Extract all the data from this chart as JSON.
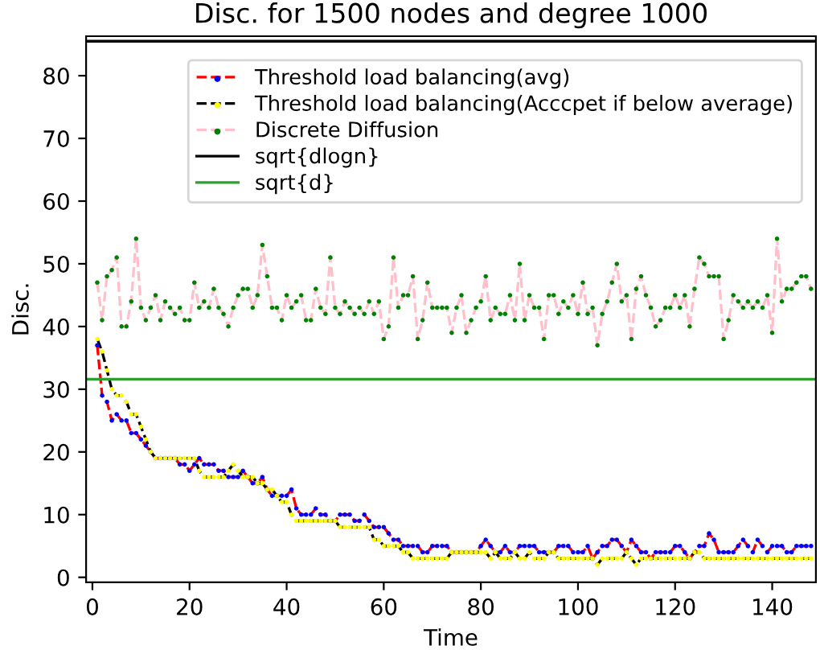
{
  "chart_data": {
    "type": "line",
    "title": "Disc. for 1500 nodes and degree 1000",
    "xlabel": "Time",
    "ylabel": "Disc.",
    "x": [
      1,
      2,
      3,
      4,
      5,
      6,
      7,
      8,
      9,
      10,
      11,
      12,
      13,
      14,
      15,
      16,
      17,
      18,
      19,
      20,
      21,
      22,
      23,
      24,
      25,
      26,
      27,
      28,
      29,
      30,
      31,
      32,
      33,
      34,
      35,
      36,
      37,
      38,
      39,
      40,
      41,
      42,
      43,
      44,
      45,
      46,
      47,
      48,
      49,
      50,
      51,
      52,
      53,
      54,
      55,
      56,
      57,
      58,
      59,
      60,
      61,
      62,
      63,
      64,
      65,
      66,
      67,
      68,
      69,
      70,
      71,
      72,
      73,
      74,
      75,
      76,
      77,
      78,
      79,
      80,
      81,
      82,
      83,
      84,
      85,
      86,
      87,
      88,
      89,
      90,
      91,
      92,
      93,
      94,
      95,
      96,
      97,
      98,
      99,
      100,
      101,
      102,
      103,
      104,
      105,
      106,
      107,
      108,
      109,
      110,
      111,
      112,
      113,
      114,
      115,
      116,
      117,
      118,
      119,
      120,
      121,
      122,
      123,
      124,
      125,
      126,
      127,
      128,
      129,
      130,
      131,
      132,
      133,
      134,
      135,
      136,
      137,
      138,
      139,
      140,
      141,
      142,
      143,
      144,
      145,
      146,
      147,
      148
    ],
    "series": [
      {
        "name": "Threshold load balancing(avg)",
        "color": "#ff0000",
        "colors": [
          "#0000ff",
          "#0000ff",
          "#0000ff",
          "#0000ff",
          "#0000ff",
          "#0000ff",
          "#0000ff",
          "#0000ff",
          "#0000ff",
          "#0000ff",
          "#0000ff",
          "#0000ff",
          "#0000ff",
          "#0000ff",
          "#0000ff",
          "#0000ff",
          "#0000ff",
          "#0000ff",
          "#0000ff",
          "#0000ff",
          "#0000ff",
          "#0000ff",
          "#0000ff",
          "#0000ff",
          "#0000ff",
          "#0000ff",
          "#0000ff",
          "#0000ff",
          "#0000ff",
          "#0000ff",
          "#0000ff",
          "#0000ff",
          "#0000ff",
          "#0000ff",
          "#0000ff",
          "#0000ff",
          "#0000ff",
          "#0000ff",
          "#0000ff",
          "#0000ff",
          "#0000ff",
          "#0000ff",
          "#0000ff",
          "#0000ff",
          "#0000ff",
          "#0000ff",
          "#0000ff",
          "#0000ff",
          "#0000ff",
          "#0000ff",
          "#0000ff",
          "#0000ff",
          "#0000ff",
          "#0000ff",
          "#0000ff",
          "#0000ff",
          "#0000ff",
          "#0000ff",
          "#0000ff",
          "#0000ff",
          "#0000ff",
          "#0000ff",
          "#0000ff",
          "#0000ff",
          "#0000ff",
          "#0000ff",
          "#0000ff",
          "#0000ff",
          "#0000ff",
          "#0000ff",
          "#0000ff",
          "#0000ff",
          "#0000ff",
          "#0000ff",
          "#0000ff",
          "#0000ff",
          "#0000ff",
          "#0000ff",
          "#0000ff",
          "#0000ff",
          "#0000ff",
          "#0000ff",
          "#0000ff",
          "#0000ff",
          "#0000ff",
          "#0000ff",
          "#0000ff",
          "#0000ff",
          "#0000ff",
          "#0000ff",
          "#0000ff",
          "#0000ff",
          "#0000ff",
          "#0000ff",
          "#0000ff",
          "#0000ff",
          "#0000ff",
          "#0000ff",
          "#0000ff",
          "#0000ff",
          "#0000ff",
          "#0000ff",
          "#0000ff",
          "#0000ff",
          "#0000ff",
          "#0000ff",
          "#0000ff",
          "#0000ff",
          "#0000ff",
          "#0000ff",
          "#0000ff",
          "#0000ff",
          "#0000ff",
          "#0000ff",
          "#0000ff",
          "#0000ff",
          "#0000ff",
          "#0000ff",
          "#0000ff",
          "#0000ff",
          "#0000ff",
          "#0000ff",
          "#0000ff",
          "#0000ff",
          "#0000ff",
          "#0000ff",
          "#0000ff",
          "#0000ff",
          "#0000ff",
          "#0000ff",
          "#0000ff",
          "#0000ff",
          "#0000ff",
          "#0000ff",
          "#0000ff",
          "#0000ff",
          "#0000ff",
          "#0000ff",
          "#0000ff",
          "#0000ff",
          "#0000ff",
          "#0000ff",
          "#0000ff",
          "#0000ff",
          "#0000ff",
          "#0000ff",
          "#0000ff",
          "#0000ff"
        ],
        "values": [
          37,
          29,
          28,
          25,
          26,
          25,
          25,
          23,
          23,
          22,
          21,
          20,
          19,
          19,
          19,
          19,
          19,
          18,
          18,
          17,
          18,
          19,
          18,
          18,
          18,
          17,
          17,
          16,
          16,
          16,
          17,
          16,
          15,
          15,
          16,
          14,
          13,
          13,
          13,
          13,
          14,
          11,
          10,
          10,
          10,
          11,
          10,
          10,
          9,
          9,
          10,
          10,
          10,
          9,
          9,
          10,
          9,
          8,
          8,
          8,
          7,
          6,
          6,
          5,
          5,
          5,
          5,
          4,
          4,
          5,
          5,
          5,
          5,
          4,
          4,
          4,
          4,
          4,
          4,
          5,
          6,
          5,
          4,
          4,
          5,
          4,
          4,
          5,
          5,
          5,
          5,
          4,
          4,
          4,
          4,
          5,
          5,
          5,
          4,
          4,
          4,
          5,
          3,
          4,
          5,
          5,
          6,
          6,
          5,
          4,
          6,
          5,
          4,
          4,
          3,
          4,
          4,
          4,
          4,
          5,
          5,
          4,
          3,
          4,
          5,
          5,
          7,
          6,
          4,
          4,
          4,
          4,
          5,
          6,
          5,
          4,
          6,
          5,
          4,
          5,
          5,
          5,
          4,
          4,
          5,
          5,
          5,
          5
        ]
      },
      {
        "name": "Threshold load balancing(Acccpet if below average)",
        "color": "#000000",
        "colors": [
          "#ffff00",
          "#ffff00",
          "#ffff00",
          "#ffff00",
          "#ffff00",
          "#ffff00",
          "#ffff00",
          "#ffff00",
          "#ffff00",
          "#ffff00",
          "#ffff00",
          "#ffff00",
          "#ffff00",
          "#ffff00",
          "#ffff00",
          "#ffff00",
          "#ffff00",
          "#ffff00",
          "#ffff00",
          "#ffff00",
          "#ffff00",
          "#ffff00",
          "#ffff00",
          "#ffff00",
          "#ffff00",
          "#ffff00",
          "#ffff00",
          "#ffff00",
          "#ffff00",
          "#ffff00",
          "#ffff00",
          "#ffff00",
          "#ffff00",
          "#ffff00",
          "#ffff00",
          "#ffff00",
          "#ffff00",
          "#ffff00",
          "#ffff00",
          "#ffff00",
          "#ffff00",
          "#ffff00",
          "#ffff00",
          "#ffff00",
          "#ffff00",
          "#ffff00",
          "#ffff00",
          "#ffff00",
          "#ffff00",
          "#ffff00",
          "#ffff00",
          "#ffff00",
          "#ffff00",
          "#ffff00",
          "#ffff00",
          "#ffff00",
          "#ffff00",
          "#ffff00",
          "#ffff00",
          "#ffff00",
          "#ffff00",
          "#ffff00",
          "#ffff00",
          "#ffff00",
          "#ffff00",
          "#ffff00",
          "#ffff00",
          "#ffff00",
          "#ffff00",
          "#ffff00",
          "#ffff00",
          "#ffff00",
          "#ffff00",
          "#ffff00",
          "#ffff00",
          "#ffff00",
          "#ffff00",
          "#ffff00",
          "#ffff00",
          "#ffff00",
          "#ffff00",
          "#ffff00",
          "#ffff00",
          "#ffff00",
          "#ffff00",
          "#ffff00",
          "#ffff00",
          "#ffff00",
          "#ffff00",
          "#ffff00",
          "#ffff00",
          "#ffff00",
          "#ffff00",
          "#ffff00",
          "#ffff00",
          "#ffff00",
          "#ffff00",
          "#ffff00",
          "#ffff00",
          "#ffff00",
          "#ffff00",
          "#ffff00",
          "#ffff00",
          "#ffff00",
          "#ffff00",
          "#ffff00",
          "#ffff00",
          "#ffff00",
          "#ffff00",
          "#ffff00",
          "#ffff00",
          "#ffff00",
          "#ffff00",
          "#ffff00",
          "#ffff00",
          "#ffff00",
          "#ffff00",
          "#ffff00",
          "#ffff00",
          "#ffff00",
          "#ffff00",
          "#ffff00",
          "#ffff00",
          "#ffff00",
          "#ffff00",
          "#ffff00",
          "#ffff00",
          "#ffff00",
          "#ffff00",
          "#ffff00",
          "#ffff00",
          "#ffff00",
          "#ffff00",
          "#ffff00",
          "#ffff00",
          "#ffff00",
          "#ffff00",
          "#ffff00",
          "#ffff00",
          "#ffff00",
          "#ffff00",
          "#ffff00",
          "#ffff00",
          "#ffff00",
          "#ffff00",
          "#ffff00",
          "#ffff00",
          "#ffff00"
        ],
        "values": [
          38,
          36,
          33,
          30,
          29,
          29,
          28,
          26,
          26,
          24,
          22,
          20,
          19,
          19,
          19,
          19,
          19,
          19,
          19,
          19,
          19,
          17,
          16,
          16,
          16,
          16,
          16,
          17,
          18,
          17,
          16,
          16,
          16,
          15,
          15,
          14,
          14,
          13,
          12,
          12,
          10,
          9,
          9,
          9,
          9,
          9,
          9,
          9,
          9,
          9,
          8,
          8,
          8,
          8,
          8,
          8,
          8,
          6,
          6,
          5,
          5,
          5,
          5,
          4,
          4,
          3,
          3,
          3,
          3,
          3,
          3,
          3,
          3,
          4,
          4,
          4,
          4,
          4,
          4,
          4,
          4,
          3,
          4,
          3,
          3,
          3,
          4,
          3,
          3,
          4,
          3,
          3,
          3,
          4,
          4,
          3,
          3,
          3,
          3,
          3,
          3,
          3,
          3,
          2,
          3,
          3,
          3,
          3,
          3,
          4,
          3,
          2,
          3,
          3,
          3,
          3,
          3,
          3,
          3,
          3,
          3,
          3,
          3,
          4,
          4,
          3,
          3,
          3,
          3,
          3,
          3,
          3,
          3,
          3,
          3,
          3,
          3,
          3,
          3,
          3,
          3,
          3,
          3,
          3,
          3,
          3,
          3,
          3
        ]
      },
      {
        "name": "Discrete Diffusion",
        "color": "#ffc0cb",
        "colors": [
          "#008000",
          "#008000",
          "#008000",
          "#008000",
          "#008000",
          "#008000",
          "#008000",
          "#008000",
          "#008000",
          "#008000",
          "#008000",
          "#008000",
          "#008000",
          "#008000",
          "#008000",
          "#008000",
          "#008000",
          "#008000",
          "#008000",
          "#008000",
          "#008000",
          "#008000",
          "#008000",
          "#008000",
          "#008000",
          "#008000",
          "#008000",
          "#008000",
          "#008000",
          "#008000",
          "#008000",
          "#008000",
          "#008000",
          "#008000",
          "#008000",
          "#008000",
          "#008000",
          "#008000",
          "#008000",
          "#008000",
          "#008000",
          "#008000",
          "#008000",
          "#008000",
          "#008000",
          "#008000",
          "#008000",
          "#008000",
          "#008000",
          "#008000",
          "#008000",
          "#008000",
          "#008000",
          "#008000",
          "#008000",
          "#008000",
          "#008000",
          "#008000",
          "#008000",
          "#008000",
          "#008000",
          "#008000",
          "#008000",
          "#008000",
          "#008000",
          "#008000",
          "#008000",
          "#008000",
          "#008000",
          "#008000",
          "#008000",
          "#008000",
          "#008000",
          "#008000",
          "#008000",
          "#008000",
          "#008000",
          "#008000",
          "#008000",
          "#008000",
          "#008000",
          "#008000",
          "#008000",
          "#008000",
          "#008000",
          "#008000",
          "#008000",
          "#008000",
          "#008000",
          "#008000",
          "#008000",
          "#008000",
          "#008000",
          "#008000",
          "#008000",
          "#008000",
          "#008000",
          "#008000",
          "#008000",
          "#008000",
          "#008000",
          "#008000",
          "#008000",
          "#008000",
          "#008000",
          "#008000",
          "#008000",
          "#008000",
          "#008000",
          "#008000",
          "#008000",
          "#008000",
          "#008000",
          "#008000",
          "#008000",
          "#008000",
          "#008000",
          "#008000",
          "#008000",
          "#008000",
          "#008000",
          "#008000",
          "#008000",
          "#008000",
          "#008000",
          "#008000",
          "#008000",
          "#008000",
          "#008000",
          "#008000",
          "#008000",
          "#008000",
          "#008000",
          "#008000",
          "#008000",
          "#008000",
          "#008000",
          "#008000",
          "#008000",
          "#008000",
          "#008000",
          "#008000",
          "#008000",
          "#008000",
          "#008000",
          "#008000",
          "#008000",
          "#008000"
        ],
        "values": [
          47,
          41,
          48,
          49,
          51,
          40,
          40,
          44,
          54,
          43,
          41,
          43,
          45,
          41,
          44,
          43,
          42,
          43,
          41,
          41,
          47,
          43,
          44,
          43,
          46,
          43,
          42,
          40,
          43,
          45,
          46,
          46,
          43,
          45,
          53,
          48,
          43,
          43,
          41,
          45,
          43,
          44,
          45,
          41,
          41,
          46,
          43,
          42,
          51,
          43,
          42,
          44,
          43,
          42,
          43,
          42,
          44,
          42,
          44,
          38,
          40,
          51,
          43,
          45,
          45,
          48,
          38,
          41,
          47,
          43,
          43,
          43,
          43,
          39,
          43,
          45,
          39,
          41,
          43,
          44,
          48,
          41,
          43,
          42,
          42,
          45,
          41,
          50,
          41,
          45,
          43,
          43,
          38,
          45,
          45,
          42,
          44,
          43,
          45,
          42,
          47,
          42,
          43,
          37,
          42,
          44,
          47,
          50,
          44,
          45,
          38,
          46,
          48,
          45,
          43,
          40,
          41,
          43,
          43,
          45,
          43,
          45,
          40,
          46,
          51,
          50,
          48,
          48,
          48,
          38,
          41,
          45,
          44,
          43,
          44,
          43,
          44,
          43,
          45,
          39,
          54,
          44,
          46,
          46,
          47,
          48,
          48,
          46
        ]
      }
    ],
    "ref_lines": [
      {
        "axis": "y",
        "value": 85.5,
        "label": "sqrt{dlogn}",
        "color": "#000000"
      },
      {
        "axis": "y",
        "value": 31.6,
        "label": "sqrt{d}",
        "color": "#2ca02c"
      }
    ],
    "xlim": [
      -1.3,
      149
    ],
    "ylim": [
      -0.8,
      86.3
    ],
    "xticks": [
      0,
      20,
      40,
      60,
      80,
      100,
      120,
      140
    ],
    "yticks": [
      0,
      10,
      20,
      30,
      40,
      50,
      60,
      70,
      80
    ],
    "marker": "circle",
    "line_style": "dashed",
    "legend": "top right",
    "grid": false
  }
}
